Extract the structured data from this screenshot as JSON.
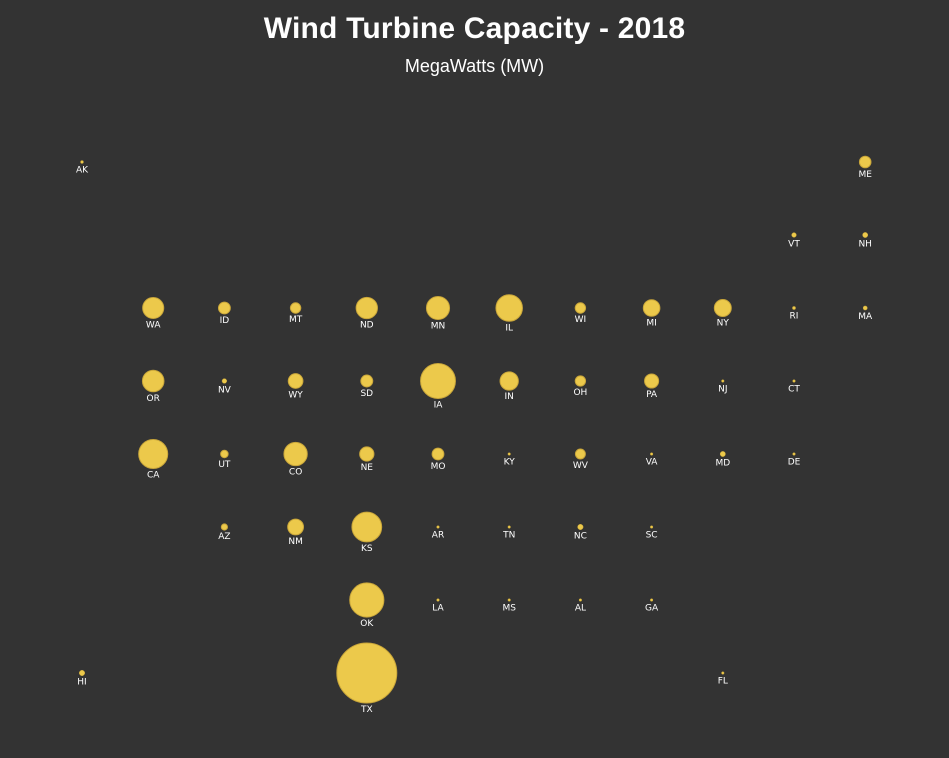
{
  "chart_data": {
    "type": "scatter",
    "title": "Wind Turbine Capacity - 2018",
    "subtitle": "MegaWatts (MW)",
    "colors": {
      "background": "#333333",
      "bubble": "#ECC94B",
      "bubble_stroke": "#C9A63A",
      "text": "#ffffff"
    },
    "states": [
      {
        "code": "AK",
        "col": 0,
        "row": 0,
        "value": 62
      },
      {
        "code": "ME",
        "col": 11,
        "row": 0,
        "value": 923
      },
      {
        "code": "VT",
        "col": 10,
        "row": 1,
        "value": 149
      },
      {
        "code": "NH",
        "col": 11,
        "row": 1,
        "value": 185
      },
      {
        "code": "WA",
        "col": 1,
        "row": 2,
        "value": 3075
      },
      {
        "code": "ID",
        "col": 2,
        "row": 2,
        "value": 973
      },
      {
        "code": "MT",
        "col": 3,
        "row": 2,
        "value": 746
      },
      {
        "code": "ND",
        "col": 4,
        "row": 2,
        "value": 3155
      },
      {
        "code": "MN",
        "col": 5,
        "row": 2,
        "value": 3699
      },
      {
        "code": "IL",
        "col": 6,
        "row": 2,
        "value": 4861
      },
      {
        "code": "WI",
        "col": 7,
        "row": 2,
        "value": 746
      },
      {
        "code": "MI",
        "col": 8,
        "row": 2,
        "value": 1904
      },
      {
        "code": "NY",
        "col": 9,
        "row": 2,
        "value": 1987
      },
      {
        "code": "RI",
        "col": 10,
        "row": 2,
        "value": 71
      },
      {
        "code": "MA",
        "col": 11,
        "row": 2,
        "value": 113
      },
      {
        "code": "OR",
        "col": 1,
        "row": 3,
        "value": 3213
      },
      {
        "code": "NV",
        "col": 2,
        "row": 3,
        "value": 152
      },
      {
        "code": "WY",
        "col": 3,
        "row": 3,
        "value": 1489
      },
      {
        "code": "SD",
        "col": 4,
        "row": 3,
        "value": 977
      },
      {
        "code": "IA",
        "col": 5,
        "row": 3,
        "value": 8422
      },
      {
        "code": "IN",
        "col": 6,
        "row": 3,
        "value": 2317
      },
      {
        "code": "OH",
        "col": 7,
        "row": 3,
        "value": 737
      },
      {
        "code": "PA",
        "col": 8,
        "row": 3,
        "value": 1369
      },
      {
        "code": "NJ",
        "col": 9,
        "row": 3,
        "value": 9
      },
      {
        "code": "CT",
        "col": 10,
        "row": 3,
        "value": 5
      },
      {
        "code": "CA",
        "col": 1,
        "row": 4,
        "value": 5842
      },
      {
        "code": "UT",
        "col": 2,
        "row": 4,
        "value": 391
      },
      {
        "code": "CO",
        "col": 3,
        "row": 4,
        "value": 3762
      },
      {
        "code": "NE",
        "col": 4,
        "row": 4,
        "value": 1415
      },
      {
        "code": "MO",
        "col": 5,
        "row": 4,
        "value": 959
      },
      {
        "code": "KY",
        "col": 6,
        "row": 4,
        "value": 0
      },
      {
        "code": "WV",
        "col": 7,
        "row": 4,
        "value": 686
      },
      {
        "code": "VA",
        "col": 8,
        "row": 4,
        "value": 0
      },
      {
        "code": "MD",
        "col": 9,
        "row": 4,
        "value": 191
      },
      {
        "code": "DE",
        "col": 10,
        "row": 4,
        "value": 2
      },
      {
        "code": "AZ",
        "col": 2,
        "row": 5,
        "value": 268
      },
      {
        "code": "NM",
        "col": 3,
        "row": 5,
        "value": 1732
      },
      {
        "code": "KS",
        "col": 4,
        "row": 5,
        "value": 6128
      },
      {
        "code": "AR",
        "col": 5,
        "row": 5,
        "value": 0
      },
      {
        "code": "TN",
        "col": 6,
        "row": 5,
        "value": 29
      },
      {
        "code": "NC",
        "col": 7,
        "row": 5,
        "value": 208
      },
      {
        "code": "SC",
        "col": 8,
        "row": 5,
        "value": 0
      },
      {
        "code": "OK",
        "col": 4,
        "row": 6,
        "value": 8072
      },
      {
        "code": "LA",
        "col": 5,
        "row": 6,
        "value": 0
      },
      {
        "code": "MS",
        "col": 6,
        "row": 6,
        "value": 0
      },
      {
        "code": "AL",
        "col": 7,
        "row": 6,
        "value": 0
      },
      {
        "code": "GA",
        "col": 8,
        "row": 6,
        "value": 0
      },
      {
        "code": "HI",
        "col": 0,
        "row": 7,
        "value": 206
      },
      {
        "code": "TX",
        "col": 4,
        "row": 7,
        "value": 24895
      },
      {
        "code": "FL",
        "col": 9,
        "row": 7,
        "value": 0
      }
    ]
  }
}
